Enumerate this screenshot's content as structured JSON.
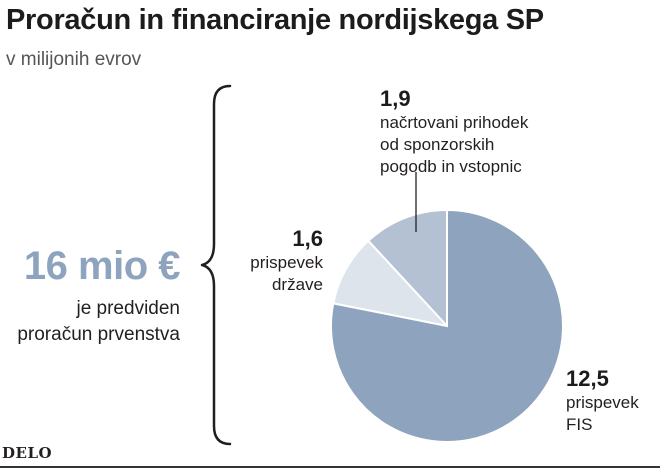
{
  "title": "Proračun in financiranje nordijskega SP",
  "subtitle": "v milijonih evrov",
  "total": {
    "value": "16 mio €",
    "description": [
      "je predviden",
      "proračun prvenstva"
    ]
  },
  "source": "DELO",
  "colors": {
    "fis": "#8ea3bd",
    "state": "#dde4ec",
    "sponsors": "#b3c1d3",
    "total_accent": "#8ea3bd",
    "text": "#231f20"
  },
  "chart_data": {
    "type": "pie",
    "title": "Proračun in financiranje nordijskega SP",
    "unit": "v milijonih evrov",
    "slices": [
      {
        "value_label": "1,9",
        "label": [
          "načrtovani prihodek",
          "od sponzorskih",
          "pogodb in vstopnic"
        ],
        "value": 1.9
      },
      {
        "value_label": "1,6",
        "label": [
          "prispevek",
          "države"
        ],
        "value": 1.6
      },
      {
        "value_label": "12,5",
        "label": [
          "prispevek",
          "FIS"
        ],
        "value": 12.5
      }
    ],
    "total": 16
  }
}
